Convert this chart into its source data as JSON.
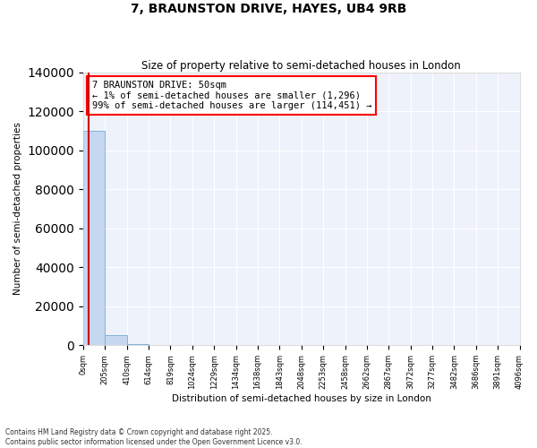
{
  "title": "7, BRAUNSTON DRIVE, HAYES, UB4 9RB",
  "subtitle": "Size of property relative to semi-detached houses in London",
  "xlabel": "Distribution of semi-detached houses by size in London",
  "ylabel": "Number of semi-detached properties",
  "annotation_lines": [
    "7 BRAUNSTON DRIVE: 50sqm",
    "← 1% of semi-detached houses are smaller (1,296)",
    "99% of semi-detached houses are larger (114,451) →"
  ],
  "property_size": 50,
  "property_line_color": "#cc0000",
  "bar_color": "#c5d8f0",
  "bar_edge_color": "#7aaad0",
  "background_color": "#ffffff",
  "plot_bg_color": "#eef2fb",
  "grid_color": "#ffffff",
  "bin_edges": [
    0,
    205,
    410,
    614,
    819,
    1024,
    1229,
    1434,
    1638,
    1843,
    2048,
    2253,
    2458,
    2662,
    2867,
    3072,
    3277,
    3482,
    3686,
    3891,
    4096
  ],
  "bin_counts": [
    110000,
    5000,
    500,
    100,
    50,
    30,
    20,
    15,
    10,
    8,
    6,
    5,
    4,
    3,
    2,
    2,
    1,
    1,
    1,
    1
  ],
  "ylim": [
    0,
    140000
  ],
  "yticks": [
    0,
    20000,
    40000,
    60000,
    80000,
    100000,
    120000,
    140000
  ],
  "footnote1": "Contains HM Land Registry data © Crown copyright and database right 2025.",
  "footnote2": "Contains public sector information licensed under the Open Government Licence v3.0."
}
